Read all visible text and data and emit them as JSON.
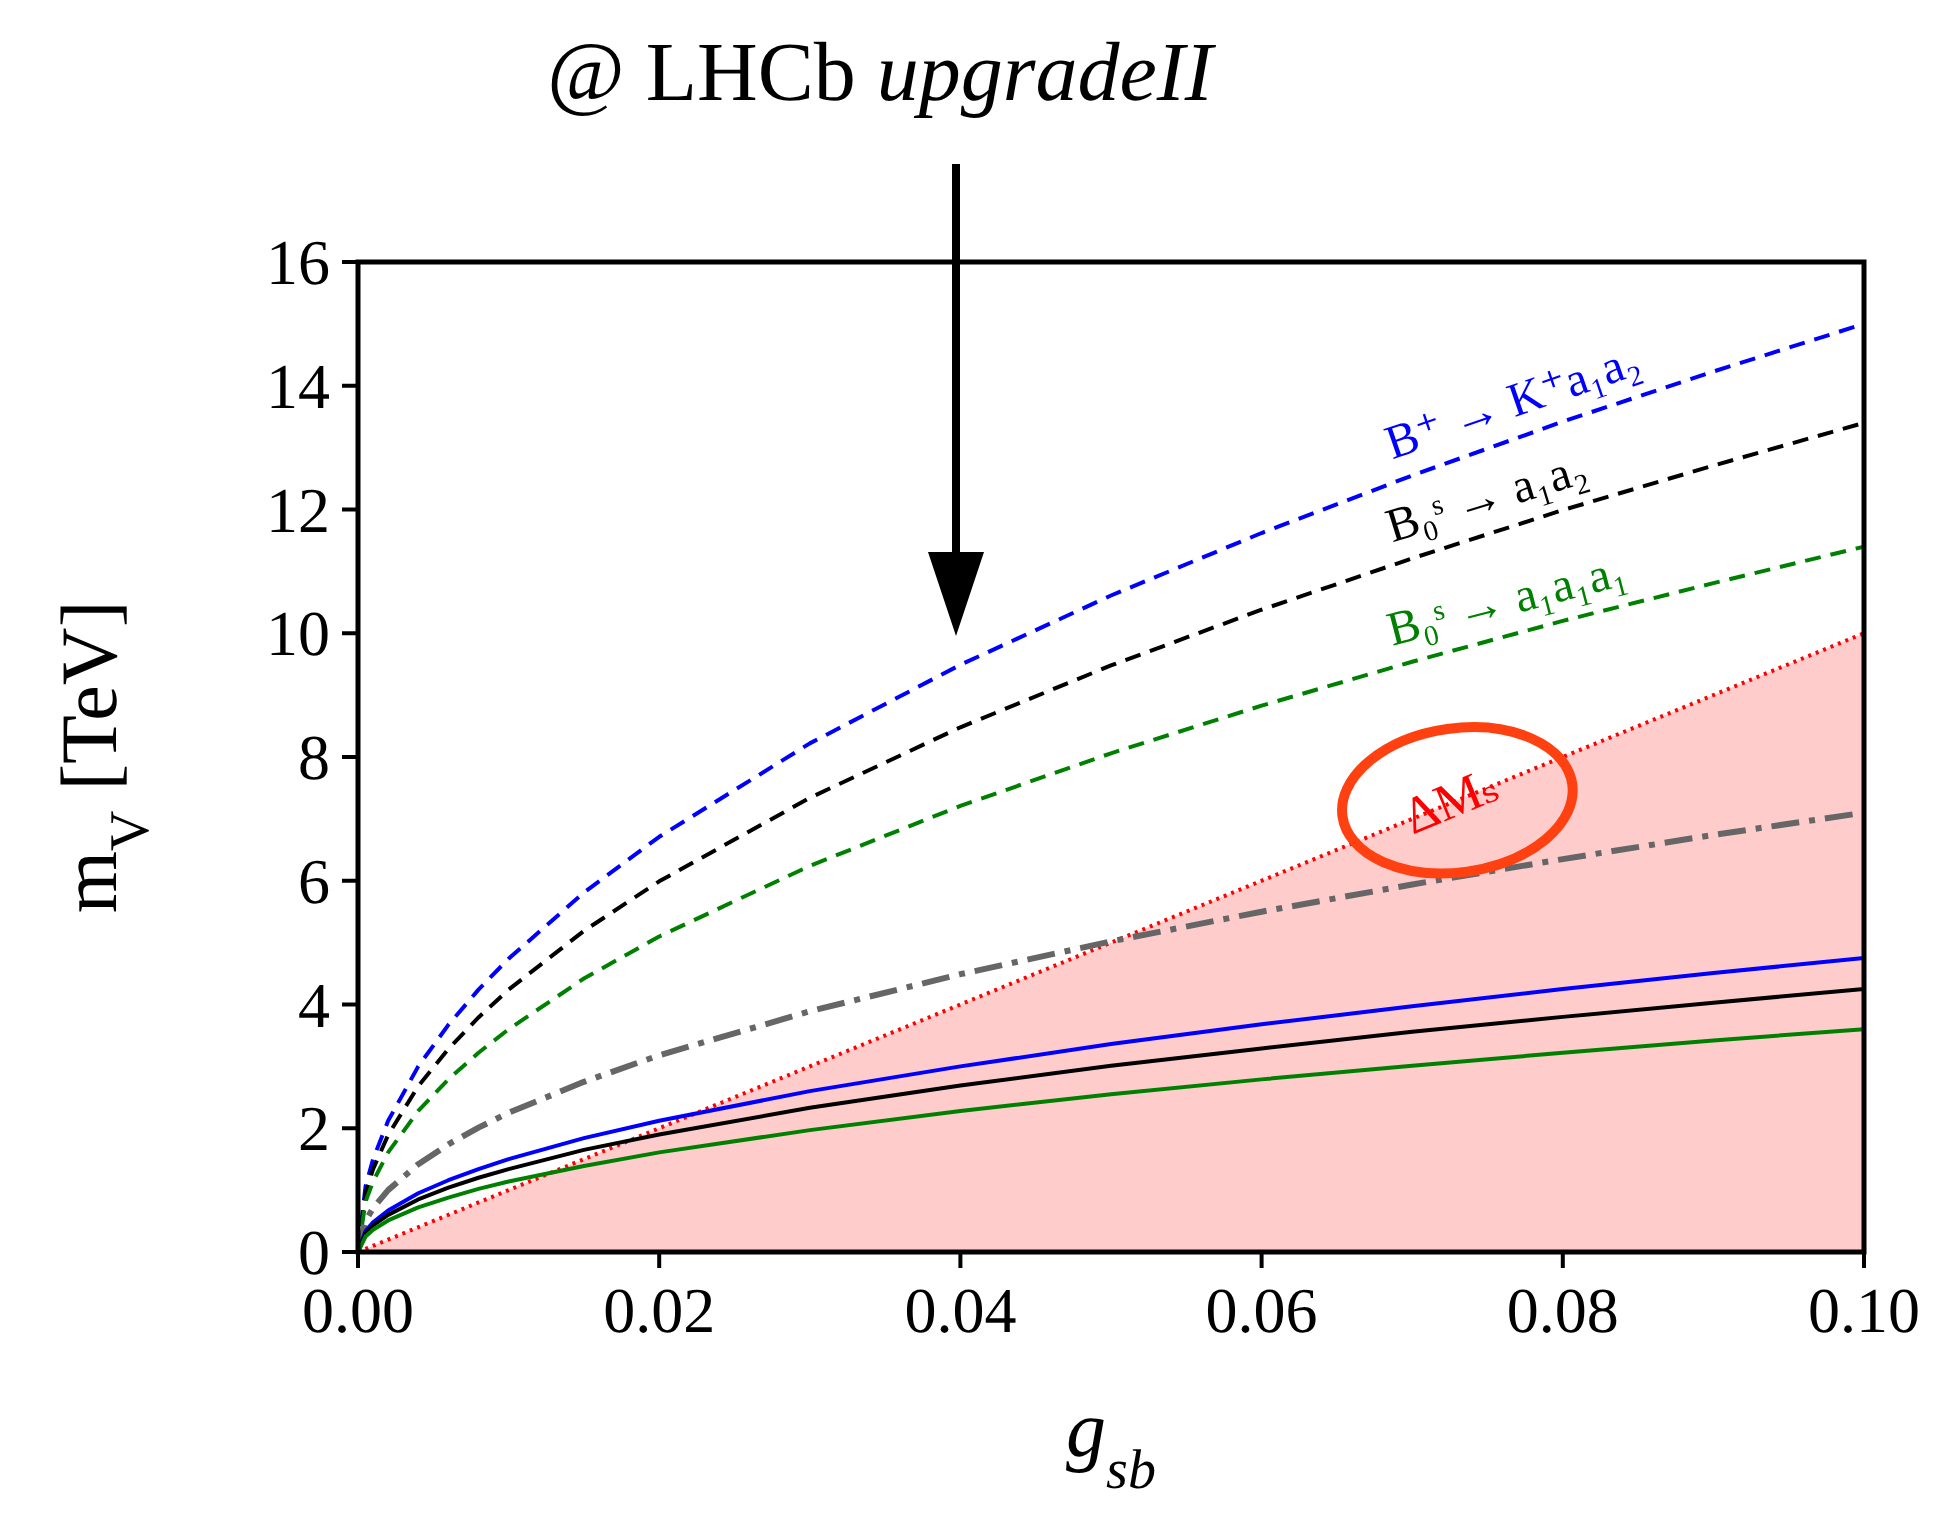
{
  "chart_data": {
    "type": "line",
    "xlabel": "g$_{sb}$",
    "ylabel": "m$_{V}$ [TeV]",
    "x": [
      0,
      0.0005,
      0.001,
      0.002,
      0.004,
      0.006,
      0.008,
      0.01,
      0.015,
      0.02,
      0.03,
      0.04,
      0.05,
      0.06,
      0.07,
      0.08,
      0.09,
      0.1
    ],
    "xlim": [
      0,
      0.1
    ],
    "xticks": [
      {
        "value": 0,
        "label": "0.00"
      },
      {
        "value": 0.02,
        "label": "0.02"
      },
      {
        "value": 0.04,
        "label": "0.04"
      },
      {
        "value": 0.06,
        "label": "0.06"
      },
      {
        "value": 0.08,
        "label": "0.08"
      },
      {
        "value": 0.1,
        "label": "0.10"
      }
    ],
    "ylim": [
      0,
      16
    ],
    "yticks": [
      0,
      2,
      4,
      6,
      8,
      10,
      12,
      14,
      16
    ],
    "series": [
      {
        "type": "area",
        "name": "ΔMₛ",
        "color": "#ff0000",
        "line_style": "dotted",
        "x": [
          0,
          0.1
        ],
        "values": [
          0,
          10
        ]
      },
      {
        "name": "B⁺ → K⁺a₁a₂",
        "color": "#0000ff",
        "line_style": "dashed",
        "values": [
          0,
          1.06,
          1.5,
          2.12,
          3,
          3.67,
          4.24,
          4.74,
          5.81,
          6.71,
          8.22,
          9.49,
          10.61,
          11.62,
          12.55,
          13.42,
          14.23,
          15
        ]
      },
      {
        "name": "B₀ˢ → a₁a₂",
        "color": "#000000",
        "line_style": "dashed",
        "values": [
          0,
          0.95,
          1.34,
          1.89,
          2.68,
          3.28,
          3.79,
          4.24,
          5.19,
          5.99,
          7.34,
          8.48,
          9.48,
          10.38,
          11.21,
          11.99,
          12.71,
          13.4
        ]
      },
      {
        "name": "B₀ˢ → a₁a₁a₁",
        "color": "#008000",
        "line_style": "dashed",
        "values": [
          0,
          0.81,
          1.14,
          1.61,
          2.28,
          2.79,
          3.22,
          3.6,
          4.42,
          5.1,
          6.24,
          7.21,
          8.06,
          8.83,
          9.54,
          10.2,
          10.81,
          11.4
        ]
      },
      {
        "color": "#666666",
        "line_style": "dashdot",
        "values": [
          0,
          0.5,
          0.71,
          1.0,
          1.42,
          1.74,
          2.01,
          2.25,
          2.75,
          3.18,
          3.89,
          4.49,
          5.02,
          5.5,
          5.94,
          6.35,
          6.74,
          7.1
        ]
      },
      {
        "color": "#0000ff",
        "line_style": "solid",
        "values": [
          0,
          0.34,
          0.48,
          0.67,
          0.95,
          1.16,
          1.34,
          1.5,
          1.84,
          2.12,
          2.6,
          3.0,
          3.36,
          3.68,
          3.97,
          4.25,
          4.51,
          4.75
        ]
      },
      {
        "color": "#000000",
        "line_style": "solid",
        "values": [
          0,
          0.3,
          0.43,
          0.6,
          0.85,
          1.04,
          1.2,
          1.34,
          1.65,
          1.9,
          2.33,
          2.69,
          3.01,
          3.29,
          3.56,
          3.8,
          4.03,
          4.25
        ]
      },
      {
        "color": "#008000",
        "line_style": "solid",
        "values": [
          0,
          0.25,
          0.36,
          0.51,
          0.72,
          0.88,
          1.02,
          1.14,
          1.39,
          1.61,
          1.97,
          2.28,
          2.55,
          2.79,
          3.01,
          3.22,
          3.42,
          3.6
        ]
      }
    ],
    "annotations": [
      "@ LHCb upgradeII"
    ]
  }
}
